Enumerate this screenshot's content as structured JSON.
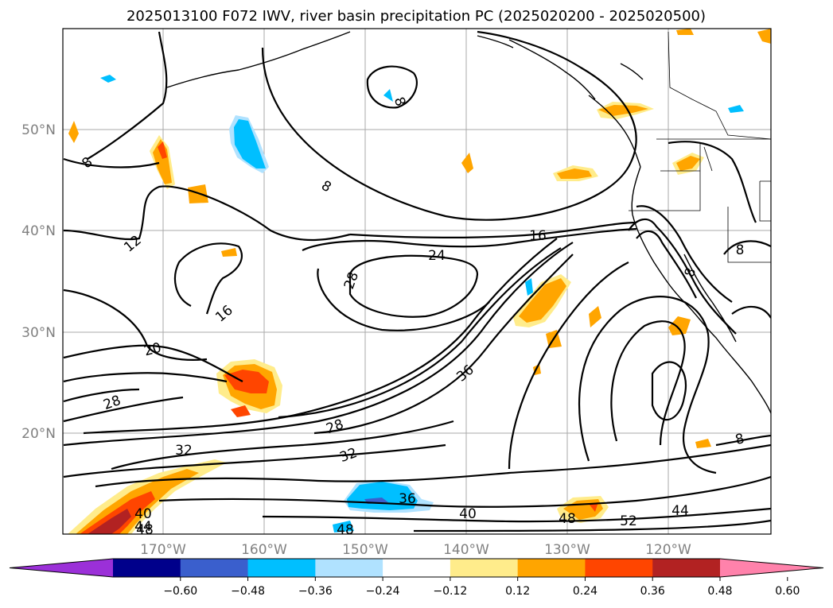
{
  "title": "2025013100 F072 IWV, river basin precipitation PC (2025020200 - 2025020500)",
  "lat_labels": [
    "50°N",
    "40°N",
    "30°N",
    "20°N"
  ],
  "lon_labels": [
    "170°W",
    "160°W",
    "150°W",
    "140°W",
    "130°W",
    "120°W"
  ],
  "colorbar": {
    "ticks": [
      "−0.60",
      "−0.48",
      "−0.36",
      "−0.24",
      "−0.12",
      "0.12",
      "0.24",
      "0.36",
      "0.48",
      "0.60"
    ],
    "colors": [
      "#9b30d8",
      "#00008b",
      "#3a5fcd",
      "#00bfff",
      "#b0e2ff",
      "#ffffff",
      "#ffec8b",
      "#ffa500",
      "#ff4500",
      "#b22222",
      "#ff82ab"
    ]
  },
  "contour_labels": [
    "8",
    "8",
    "8",
    "8",
    "8",
    "8",
    "12",
    "16",
    "16",
    "20",
    "24",
    "28",
    "28",
    "28",
    "32",
    "32",
    "36",
    "36",
    "40",
    "40",
    "44",
    "44",
    "48",
    "48",
    "48",
    "52"
  ]
}
